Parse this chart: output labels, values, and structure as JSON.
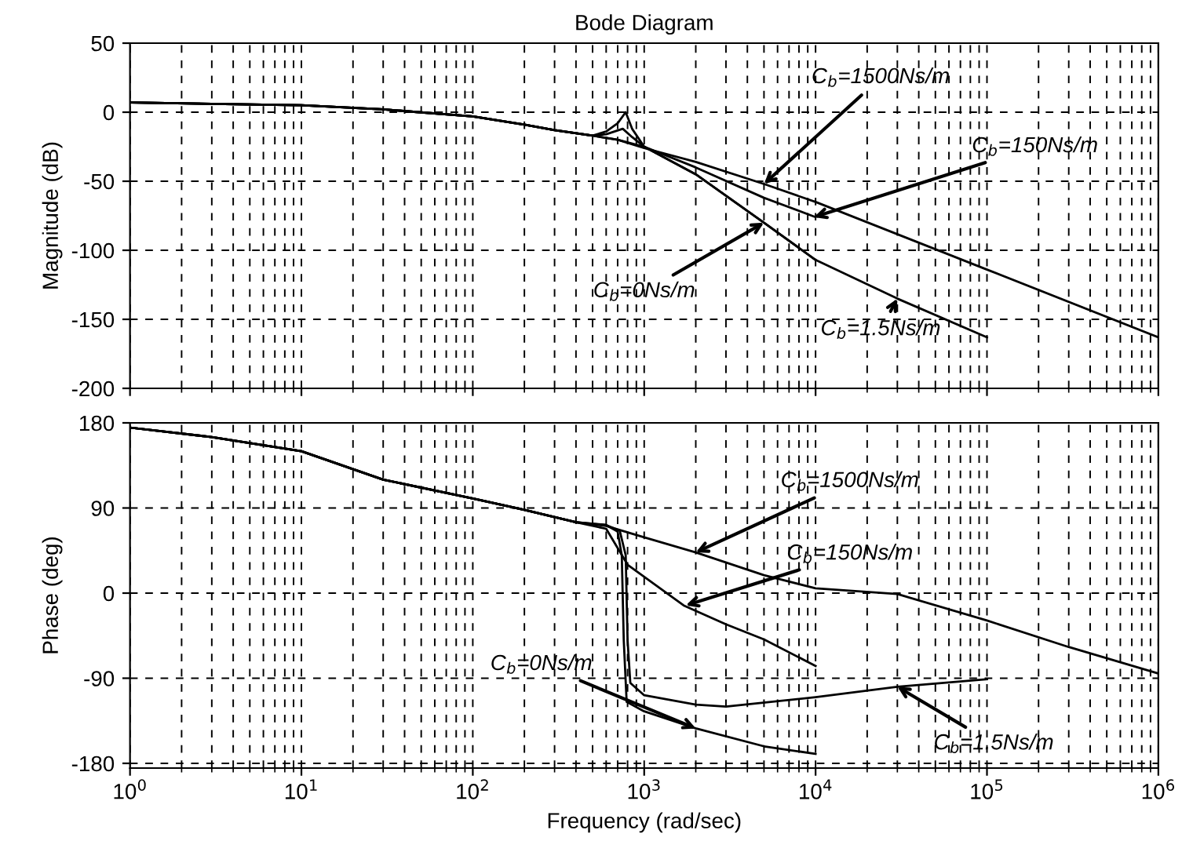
{
  "chart_data": [
    {
      "type": "line",
      "title": "Bode Diagram",
      "ylabel": "Magnitude (dB)",
      "log": "x",
      "grid": true,
      "tick_labels": "y",
      "line_style": "solid",
      "xlim": [
        1,
        1000000
      ],
      "ylim": [
        -200,
        50
      ],
      "yticks": [
        -200,
        -150,
        -100,
        -50,
        0,
        50
      ],
      "xticks": [
        {
          "value": 1,
          "label": null
        },
        {
          "value": 10,
          "label": null
        },
        {
          "value": 100,
          "label": null
        },
        {
          "value": 1000,
          "label": null
        },
        {
          "value": 10000,
          "label": null
        },
        {
          "value": 100000,
          "label": null
        },
        {
          "value": 1000000,
          "label": null
        }
      ],
      "series": [
        {
          "color": "#000000",
          "x": [
            1,
            3,
            10,
            30,
            100,
            200,
            300,
            500,
            600,
            700,
            780,
            850,
            1000,
            2000,
            5000,
            10000
          ],
          "values": [
            7,
            6,
            5,
            2,
            -3,
            -9,
            -13,
            -17,
            -14,
            -8,
            0,
            -12,
            -25,
            -45,
            -80,
            -107
          ]
        },
        {
          "color": "#000000",
          "x": [
            1,
            3,
            10,
            30,
            100,
            200,
            300,
            500,
            600,
            750,
            850,
            1000,
            2000,
            5000,
            10000,
            30000,
            100000
          ],
          "values": [
            7,
            6,
            5,
            2,
            -3,
            -9,
            -13,
            -17,
            -16,
            -12,
            -18,
            -25,
            -45,
            -80,
            -107,
            -135,
            -163
          ]
        },
        {
          "color": "#000000",
          "x": [
            1,
            3,
            10,
            30,
            100,
            200,
            300,
            500,
            700,
            1000,
            2000,
            5000,
            10000
          ],
          "values": [
            7,
            6,
            5,
            2,
            -3,
            -9,
            -13,
            -17,
            -20,
            -25,
            -40,
            -62,
            -76
          ]
        },
        {
          "color": "#000000",
          "x": [
            1,
            3,
            10,
            30,
            100,
            200,
            300,
            500,
            700,
            1000,
            2000,
            5000,
            10000,
            100000,
            1000000
          ],
          "values": [
            7,
            6,
            5,
            2,
            -3,
            -9,
            -13,
            -17,
            -20,
            -26,
            -36,
            -52,
            -65,
            -114,
            -163
          ]
        }
      ],
      "annotations": [
        {
          "text": "C$_{b}$=1500Ns/m",
          "x": 5000,
          "y": -52
        },
        {
          "text": "C$_{b}$=150Ns/m",
          "x": 9800,
          "y": -76
        },
        {
          "text": "C$_{b}$=0Ns/m",
          "x": 5000,
          "y": -80
        },
        {
          "text": "C$_{b}$=1.5Ns/m",
          "x": 30000,
          "y": -135
        }
      ]
    },
    {
      "type": "line",
      "ylabel": "Phase (deg)",
      "xlabel": "Frequency (rad/sec)",
      "log": "x",
      "grid": true,
      "line_style": "solid",
      "xlim": [
        1,
        1000000
      ],
      "ylim": [
        -185,
        180
      ],
      "yticks": [
        -180,
        -90,
        0,
        90,
        180
      ],
      "xticks": [
        {
          "value": 1,
          "label": "10$^{0}$"
        },
        {
          "value": 10,
          "label": "10$^{1}$"
        },
        {
          "value": 100,
          "label": "10$^{2}$"
        },
        {
          "value": 1000,
          "label": "10$^{3}$"
        },
        {
          "value": 10000,
          "label": "10$^{4}$"
        },
        {
          "value": 100000,
          "label": "10$^{5}$"
        },
        {
          "value": 1000000,
          "label": "10$^{6}$"
        }
      ],
      "series": [
        {
          "color": "#000000",
          "x": [
            1,
            3,
            10,
            30,
            100,
            200,
            400,
            600,
            700,
            740,
            760,
            790,
            1000,
            2000,
            5000,
            10000
          ],
          "values": [
            175,
            165,
            150,
            120,
            100,
            88,
            75,
            72,
            65,
            40,
            -50,
            -115,
            -125,
            -143,
            -162,
            -170
          ]
        },
        {
          "color": "#000000",
          "x": [
            1,
            3,
            10,
            30,
            100,
            200,
            400,
            600,
            720,
            780,
            800,
            830,
            1000,
            2000,
            3000,
            10000,
            30000,
            100000
          ],
          "values": [
            175,
            165,
            150,
            120,
            100,
            88,
            75,
            72,
            66,
            40,
            -50,
            -95,
            -108,
            -118,
            -120,
            -110,
            -99,
            -91
          ]
        },
        {
          "color": "#000000",
          "x": [
            1,
            3,
            10,
            30,
            100,
            200,
            400,
            600,
            800,
            1700,
            3000,
            5000,
            10000
          ],
          "values": [
            175,
            165,
            150,
            120,
            100,
            88,
            75,
            68,
            30,
            -13,
            -33,
            -49,
            -77
          ]
        },
        {
          "color": "#000000",
          "x": [
            1,
            3,
            10,
            30,
            100,
            200,
            400,
            600,
            1000,
            2000,
            5000,
            10000,
            30000,
            100000,
            300000,
            1000000
          ],
          "values": [
            175,
            165,
            150,
            120,
            100,
            88,
            75,
            71,
            59,
            43,
            19,
            5,
            -1,
            -29,
            -57,
            -85
          ]
        }
      ],
      "annotations": [
        {
          "text": "C$_{b}$=1500Ns/m",
          "x": 2000,
          "y": 43
        },
        {
          "text": "C$_{b}$=150Ns/m",
          "x": 1750,
          "y": -13
        },
        {
          "text": "C$_{b}$=0Ns/m",
          "x": 2000,
          "y": -143
        },
        {
          "text": "C$_{b}$=1.5Ns/m",
          "x": 30000,
          "y": -99
        }
      ]
    }
  ]
}
